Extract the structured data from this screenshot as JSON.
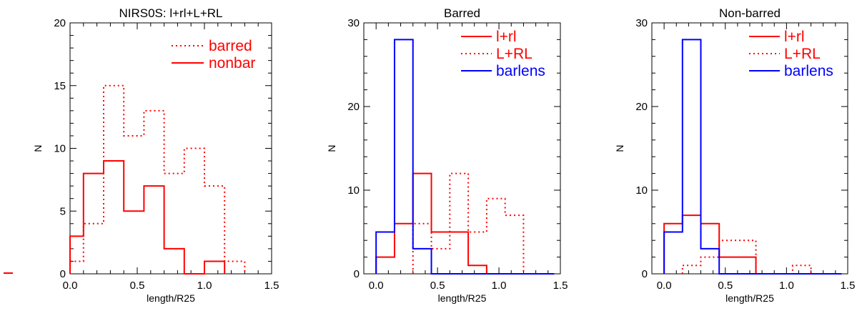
{
  "chart_data": [
    {
      "type": "histogram",
      "title": "NIRS0S: l+rl+L+RL",
      "xlabel": "length/R25",
      "ylabel": "N",
      "xlim": [
        0.0,
        1.5
      ],
      "ylim": [
        0,
        20
      ],
      "xticks": [
        "0.0",
        "0.5",
        "1.0",
        "1.5"
      ],
      "yticks": [
        "0",
        "5",
        "10",
        "15",
        "20"
      ],
      "series": [
        {
          "name": "barred",
          "style": "dotted",
          "color": "#ff0000",
          "edges": [
            0.0,
            0.1,
            0.25,
            0.4,
            0.55,
            0.7,
            0.85,
            1.0,
            1.15,
            1.3
          ],
          "counts": [
            1,
            4,
            15,
            11,
            13,
            8,
            10,
            7,
            1
          ]
        },
        {
          "name": "nonbar",
          "style": "solid",
          "color": "#ff0000",
          "edges": [
            0.0,
            0.1,
            0.25,
            0.4,
            0.55,
            0.7,
            0.85,
            1.0,
            1.15
          ],
          "counts": [
            3,
            8,
            9,
            5,
            7,
            2,
            0,
            1
          ]
        }
      ]
    },
    {
      "type": "histogram",
      "title": "Barred",
      "xlabel": "length/R25",
      "ylabel": "N",
      "xlim": [
        -0.1,
        1.5
      ],
      "ylim": [
        0,
        30
      ],
      "xticks": [
        "0.0",
        "0.5",
        "1.0",
        "1.5"
      ],
      "yticks": [
        "0",
        "10",
        "20",
        "30"
      ],
      "series": [
        {
          "name": "l+rl",
          "style": "solid",
          "color": "#ff0000",
          "edges": [
            0.0,
            0.15,
            0.3,
            0.45,
            0.75,
            0.9
          ],
          "counts": [
            2,
            6,
            12,
            5,
            1
          ]
        },
        {
          "name": "L+RL",
          "style": "dotted",
          "color": "#ff0000",
          "edges": [
            0.3,
            0.45,
            0.6,
            0.75,
            0.9,
            1.05,
            1.2
          ],
          "counts": [
            6,
            3,
            12,
            5,
            9,
            7
          ]
        },
        {
          "name": "barlens",
          "style": "solid",
          "color": "#0000ff",
          "edges": [
            0.0,
            0.15,
            0.3,
            0.45,
            1.45
          ],
          "counts": [
            5,
            28,
            3,
            0
          ]
        }
      ]
    },
    {
      "type": "histogram",
      "title": "Non-barred",
      "xlabel": "length/R25",
      "ylabel": "N",
      "xlim": [
        -0.1,
        1.5
      ],
      "ylim": [
        0,
        30
      ],
      "xticks": [
        "0.0",
        "0.5",
        "1.0",
        "1.5"
      ],
      "yticks": [
        "0",
        "10",
        "20",
        "30"
      ],
      "series": [
        {
          "name": "l+rl",
          "style": "solid",
          "color": "#ff0000",
          "edges": [
            0.0,
            0.15,
            0.3,
            0.45,
            0.75
          ],
          "counts": [
            6,
            7,
            6,
            2
          ]
        },
        {
          "name": "L+RL",
          "style": "dotted",
          "color": "#ff0000",
          "edges": [
            0.15,
            0.3,
            0.45,
            0.75,
            1.05,
            1.2,
            1.35
          ],
          "counts": [
            1,
            2,
            4,
            0,
            1,
            0
          ]
        },
        {
          "name": "barlens",
          "style": "solid",
          "color": "#0000ff",
          "edges": [
            0.0,
            0.15,
            0.3,
            0.45,
            1.45
          ],
          "counts": [
            5,
            28,
            3,
            0
          ]
        }
      ]
    }
  ]
}
